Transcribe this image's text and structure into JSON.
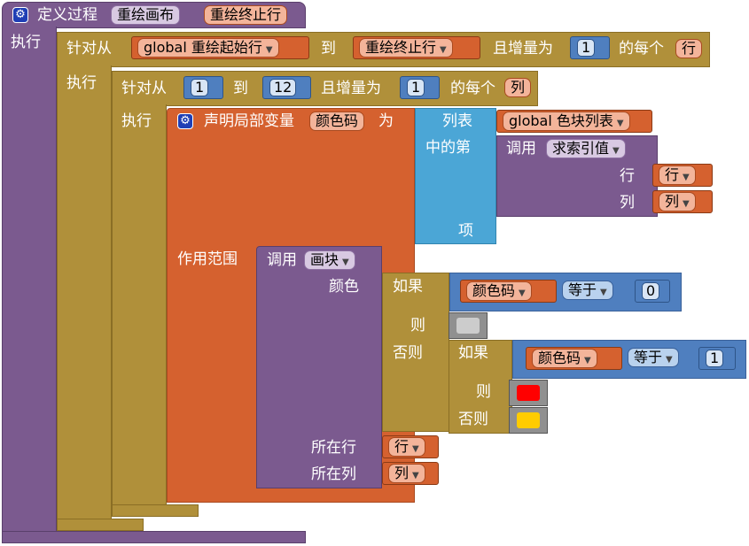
{
  "procedure": {
    "define_label": "定义过程",
    "name": "重绘画布",
    "param": "重绘终止行",
    "do_label": "执行"
  },
  "outer_loop": {
    "for_label": "针对从",
    "from_var": "global 重绘起始行",
    "to_label": "到",
    "to_var": "重绘终止行",
    "step_label": "且增量为",
    "step_value": "1",
    "each_label": "的每个",
    "loop_var": "行",
    "do_label": "执行"
  },
  "inner_loop": {
    "for_label": "针对从",
    "from_value": "1",
    "to_label": "到",
    "to_value": "12",
    "step_label": "且增量为",
    "step_value": "1",
    "each_label": "的每个",
    "loop_var": "列",
    "do_label": "执行"
  },
  "local_var": {
    "declare_label": "声明局部变量",
    "name": "颜色码",
    "as_label": "为",
    "scope_label": "作用范围"
  },
  "list_item": {
    "list_label": "列表",
    "list_var": "global 色块列表",
    "index_label": "中的第",
    "item_label": "项"
  },
  "call_index": {
    "call_label": "调用",
    "proc_name": "求索引值",
    "row_label": "行",
    "row_var": "行",
    "col_label": "列",
    "col_var": "列"
  },
  "call_draw": {
    "call_label": "调用",
    "proc_name": "画块",
    "color_label": "颜色",
    "row_label": "所在行",
    "row_var": "行",
    "col_label": "所在列",
    "col_var": "列"
  },
  "if1": {
    "if_label": "如果",
    "var": "颜色码",
    "op": "等于",
    "value": "0",
    "then_label": "则",
    "else_label": "否则",
    "then_color": "#cccccc"
  },
  "if2": {
    "if_label": "如果",
    "var": "颜色码",
    "op": "等于",
    "value": "1",
    "then_label": "则",
    "else_label": "否则",
    "then_color": "#ff0000",
    "else_color": "#ffcc00"
  }
}
